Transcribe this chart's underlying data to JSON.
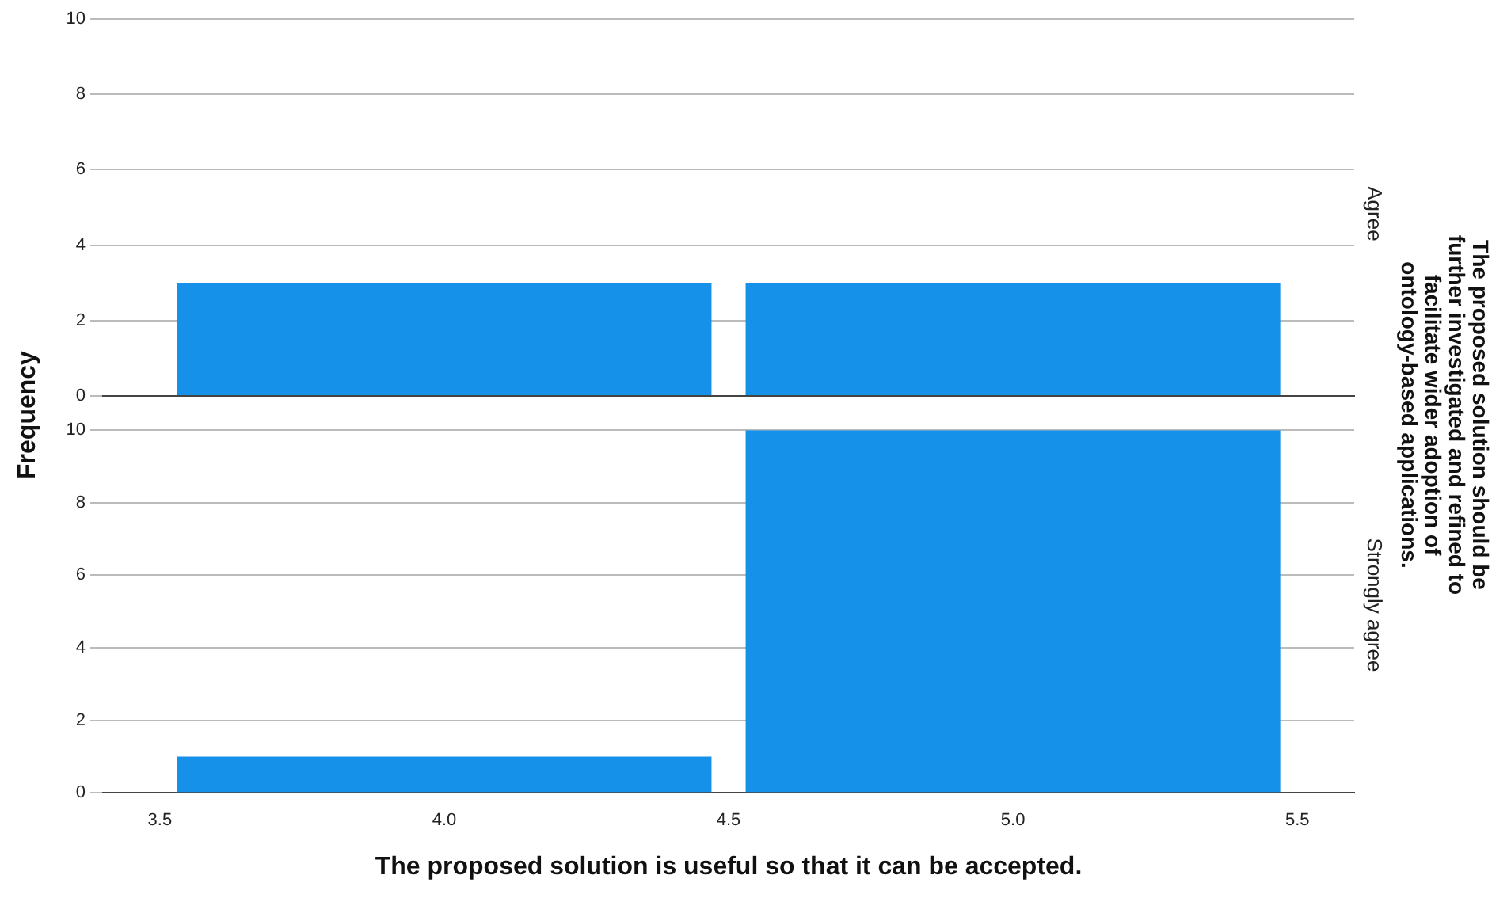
{
  "chart_data": [
    {
      "type": "histogram",
      "subtitle": "Agree",
      "ylabel": "Frequency",
      "y2label": "The proposed solution should be further investigated and refined to facilitate wider adoption of ontology-based applications.",
      "bins": [
        3.5,
        4.5,
        5.5
      ],
      "values": [
        3,
        3
      ],
      "color": "#1591ea",
      "xlim": [
        3.4,
        5.6
      ],
      "ylim": [
        0,
        10
      ],
      "yticks": [
        0,
        2,
        4,
        6,
        8,
        10
      ],
      "grid": "y",
      "tick_labels": "y"
    },
    {
      "type": "histogram",
      "subtitle": "Strongly agree",
      "xlabel": "The proposed solution is useful so that it can be accepted.",
      "bins": [
        3.5,
        4.5,
        5.5
      ],
      "values": [
        1,
        10
      ],
      "color": "#1591ea",
      "xlim": [
        3.4,
        5.6
      ],
      "xticks": [
        3.5,
        {
          "value": 4,
          "label": "4.0"
        },
        4.5,
        {
          "value": 5,
          "label": "5.0"
        },
        5.5
      ],
      "ylim": [
        0,
        10
      ],
      "yticks": [
        0,
        2,
        4,
        6,
        8,
        10
      ],
      "grid": "y"
    }
  ]
}
